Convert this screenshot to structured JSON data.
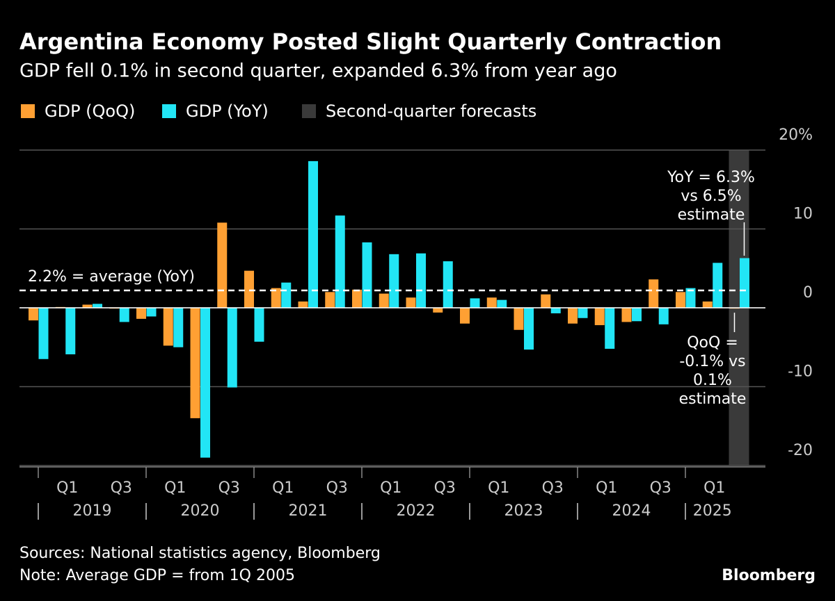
{
  "chart_data": {
    "type": "bar",
    "title": "Argentina Economy Posted Slight Quarterly Contraction",
    "subtitle": "GDP fell 0.1% in second quarter, expanded 6.3% from year ago",
    "categories": [
      null,
      "Q1",
      null,
      "Q3",
      null,
      "Q1",
      null,
      "Q3",
      null,
      "Q1",
      null,
      "Q3",
      null,
      "Q1",
      null,
      "Q3",
      null,
      "Q1",
      null,
      "Q3",
      null,
      "Q1",
      null,
      "Q3",
      null,
      "Q1",
      null
    ],
    "year_labels": [
      "2019",
      "2020",
      "2021",
      "2022",
      "2023",
      "2024",
      "2025"
    ],
    "series": [
      {
        "name": "GDP (QoQ)",
        "color": "#ffa033",
        "values": [
          -1.6,
          0.1,
          0.4,
          -0.1,
          -1.4,
          -4.8,
          -14.0,
          10.8,
          4.7,
          2.5,
          0.8,
          2.0,
          2.3,
          1.8,
          1.3,
          -0.6,
          -2.0,
          1.3,
          -2.8,
          1.7,
          -2.0,
          -2.2,
          -1.8,
          3.6,
          2.0,
          0.8,
          -0.1
        ]
      },
      {
        "name": "GDP (YoY)",
        "color": "#22e5f5",
        "values": [
          -6.5,
          -5.9,
          0.5,
          -1.8,
          -1.1,
          -5.0,
          -19.0,
          -10.1,
          -4.3,
          3.2,
          18.6,
          11.7,
          8.3,
          6.8,
          6.9,
          5.9,
          1.2,
          1.0,
          -5.3,
          -0.7,
          -1.3,
          -5.2,
          -1.7,
          -2.1,
          2.5,
          5.7,
          6.3
        ]
      }
    ],
    "highlight": {
      "name": "Second-quarter forecasts",
      "color": "#3a3a3a"
    },
    "average": {
      "value": 2.2,
      "label": "2.2% = average (YoY)"
    },
    "annotations": [
      {
        "lines": [
          "YoY = 6.3%",
          "vs 6.5%",
          "estimate"
        ]
      },
      {
        "lines": [
          "QoQ =",
          "-0.1% vs",
          "0.1%",
          "estimate"
        ]
      }
    ],
    "ylim": [
      -20,
      20
    ],
    "yticks": [
      {
        "value": 20,
        "label": "20%"
      },
      10,
      0,
      -10,
      -20
    ],
    "grid": true,
    "footnotes": [
      "Sources: National statistics agency, Bloomberg",
      "Note: Average GDP = from 1Q 2005"
    ],
    "brand": "Bloomberg"
  }
}
